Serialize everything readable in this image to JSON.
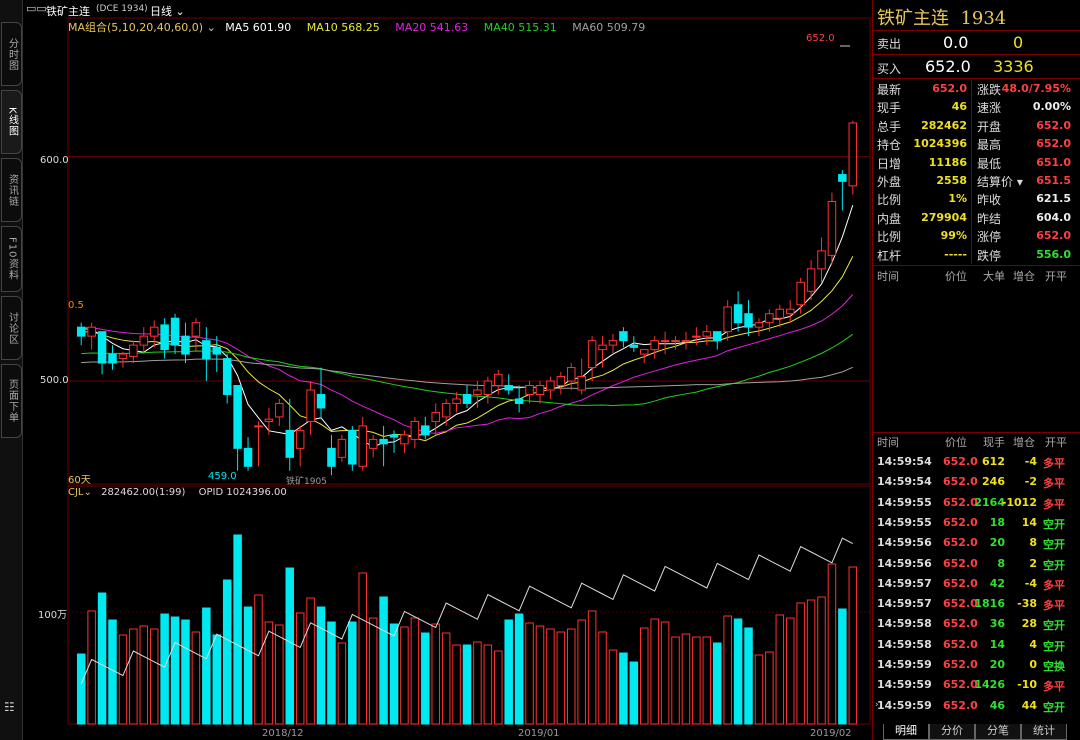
{
  "left_tabs": [
    "分时图",
    "K线图",
    "资讯链",
    "F10资料",
    "讨论区",
    "页面下单"
  ],
  "left_tab_active": "K线图",
  "chart_header": {
    "menu_icon": "window-icon",
    "symbol": "铁矿主连",
    "symbol_code": "(DCE 1934)",
    "period": "日线",
    "ma_group": "MA组合(5,10,20,40,60,0)",
    "ma5": "MA5 601.90",
    "ma10": "MA10 568.25",
    "ma20": "MA20 541.63",
    "ma40": "MA40 515.31",
    "ma60": "MA60 509.79"
  },
  "colors": {
    "ma5": "#ffffff",
    "ma10": "#e8e83a",
    "ma20": "#e020e0",
    "ma40": "#20d020",
    "ma60": "#a0a0a0",
    "up": "#ff3030",
    "down": "#00e8f0",
    "grid": "#6a0000"
  },
  "price_labels": {
    "p600": "600.0",
    "p500": "500.0",
    "high_marker": "652.0",
    "low_marker": "459.0",
    "scale_label": "0.5",
    "days_label": "60天",
    "contract_label": "铁矿1905"
  },
  "volume_header": {
    "indicator": "CJL",
    "value": "282462.00(1:99)",
    "opid": "OPID 1024396.00",
    "axis_label": "100万"
  },
  "x_axis_labels": [
    "2018/12",
    "2019/01",
    "2019/02"
  ],
  "chart_data": {
    "type": "candlestick",
    "y_range": [
      455,
      660
    ],
    "candles": [
      [
        524,
        526,
        516,
        520
      ],
      [
        520,
        526,
        514,
        524
      ],
      [
        522,
        522,
        503,
        508
      ],
      [
        512,
        516,
        505,
        508
      ],
      [
        510,
        513,
        506,
        512
      ],
      [
        511,
        518,
        508,
        516
      ],
      [
        516,
        524,
        512,
        520
      ],
      [
        520,
        527,
        515,
        524
      ],
      [
        525,
        528,
        510,
        514
      ],
      [
        528,
        530,
        512,
        516
      ],
      [
        520,
        526,
        508,
        512
      ],
      [
        520,
        528,
        513,
        526
      ],
      [
        518,
        524,
        500,
        510
      ],
      [
        515,
        520,
        504,
        512
      ],
      [
        510,
        512,
        490,
        494
      ],
      [
        498,
        498,
        460,
        470
      ],
      [
        470,
        475,
        460,
        462
      ],
      [
        480,
        482,
        462,
        480
      ],
      [
        482,
        488,
        476,
        483
      ],
      [
        484,
        492,
        480,
        490
      ],
      [
        478,
        492,
        460,
        466
      ],
      [
        470,
        480,
        462,
        478
      ],
      [
        482,
        500,
        476,
        496
      ],
      [
        494,
        506,
        484,
        488
      ],
      [
        470,
        476,
        458,
        462
      ],
      [
        466,
        476,
        464,
        474
      ],
      [
        478,
        480,
        460,
        463
      ],
      [
        462,
        484,
        460,
        480
      ],
      [
        470,
        476,
        466,
        474
      ],
      [
        474,
        480,
        462,
        472
      ],
      [
        476,
        478,
        468,
        475
      ],
      [
        472,
        478,
        468,
        476
      ],
      [
        474,
        484,
        470,
        482
      ],
      [
        480,
        484,
        474,
        476
      ],
      [
        482,
        490,
        476,
        486
      ],
      [
        484,
        492,
        480,
        490
      ],
      [
        490,
        495,
        486,
        492
      ],
      [
        494,
        498,
        488,
        490
      ],
      [
        494,
        500,
        488,
        496
      ],
      [
        494,
        502,
        490,
        500
      ],
      [
        498,
        505,
        494,
        503
      ],
      [
        498,
        503,
        494,
        496
      ],
      [
        492,
        498,
        486,
        490
      ],
      [
        494,
        500,
        490,
        498
      ],
      [
        494,
        500,
        490,
        498
      ],
      [
        496,
        502,
        492,
        500
      ],
      [
        498,
        504,
        494,
        502
      ],
      [
        500,
        508,
        496,
        506
      ],
      [
        496,
        510,
        494,
        502
      ],
      [
        506,
        520,
        500,
        518
      ],
      [
        514,
        520,
        506,
        516
      ],
      [
        516,
        521,
        512,
        518
      ],
      [
        522,
        524,
        515,
        518
      ],
      [
        516,
        520,
        513,
        515
      ],
      [
        512,
        514,
        508,
        514
      ],
      [
        514,
        520,
        510,
        518
      ],
      [
        518,
        522,
        512,
        518
      ],
      [
        518,
        520,
        514,
        518
      ],
      [
        518,
        522,
        514,
        518
      ],
      [
        520,
        524,
        516,
        520
      ],
      [
        520,
        525,
        516,
        522
      ],
      [
        522,
        522,
        514,
        518
      ],
      [
        522,
        536,
        518,
        533
      ],
      [
        534,
        540,
        522,
        526
      ],
      [
        530,
        536,
        520,
        524
      ],
      [
        524,
        528,
        520,
        526
      ],
      [
        526,
        532,
        522,
        530
      ],
      [
        528,
        534,
        524,
        532
      ],
      [
        530,
        536,
        526,
        532
      ],
      [
        534,
        546,
        530,
        544
      ],
      [
        540,
        554,
        536,
        550
      ],
      [
        550,
        564,
        544,
        558
      ],
      [
        556,
        584,
        552,
        580
      ],
      [
        592,
        594,
        576,
        589
      ],
      [
        587,
        616,
        583,
        615
      ]
    ],
    "volume_series_note": "",
    "last_price": 652.0
  },
  "right_panel": {
    "title": "铁矿主连",
    "code": "1934",
    "sell_label": "卖出",
    "sell_price": "0.0",
    "sell_vol": "0",
    "buy_label": "买入",
    "buy_price": "652.0",
    "buy_vol": "3336",
    "stats_left": [
      {
        "k": "最新",
        "v": "652.0",
        "c": "r"
      },
      {
        "k": "现手",
        "v": "46",
        "c": "y"
      },
      {
        "k": "总手",
        "v": "282462",
        "c": "y"
      },
      {
        "k": "持仓",
        "v": "1024396",
        "c": "y"
      },
      {
        "k": "日增",
        "v": "11186",
        "c": "y"
      },
      {
        "k": "外盘",
        "v": "2558",
        "c": "y"
      },
      {
        "k": "比例",
        "v": "1%",
        "c": "y"
      },
      {
        "k": "内盘",
        "v": "279904",
        "c": "y"
      },
      {
        "k": "比例",
        "v": "99%",
        "c": "y"
      },
      {
        "k": "杠杆",
        "v": "-----",
        "c": "y"
      }
    ],
    "stats_right": [
      {
        "k": "涨跌",
        "v": "48.0/7.95%",
        "c": "r"
      },
      {
        "k": "速涨",
        "v": "0.00%",
        "c": "w"
      },
      {
        "k": "开盘",
        "v": "652.0",
        "c": "r"
      },
      {
        "k": "最高",
        "v": "652.0",
        "c": "r"
      },
      {
        "k": "最低",
        "v": "651.0",
        "c": "r"
      },
      {
        "k": "结算价",
        "v": "651.5",
        "c": "r"
      },
      {
        "k": "昨收",
        "v": "621.5",
        "c": "w"
      },
      {
        "k": "昨结",
        "v": "604.0",
        "c": "w"
      },
      {
        "k": "涨停",
        "v": "652.0",
        "c": "r"
      },
      {
        "k": "跌停",
        "v": "556.0",
        "c": "g"
      }
    ],
    "order_header": [
      "时间",
      "价位",
      "大单",
      "增仓",
      "开平"
    ],
    "trade_header": [
      "时间",
      "价位",
      "现手",
      "增仓",
      "开平"
    ],
    "trades": [
      [
        "14:59:54",
        "652.0",
        "612",
        "-4",
        "多平",
        "y",
        "r"
      ],
      [
        "14:59:54",
        "652.0",
        "246",
        "-2",
        "多平",
        "y",
        "r"
      ],
      [
        "14:59:55",
        "652.0",
        "2164",
        "-1012",
        "多平",
        "g",
        "r"
      ],
      [
        "14:59:55",
        "652.0",
        "18",
        "14",
        "空开",
        "g",
        "g"
      ],
      [
        "14:59:56",
        "652.0",
        "20",
        "8",
        "空开",
        "g",
        "g"
      ],
      [
        "14:59:56",
        "652.0",
        "8",
        "2",
        "空开",
        "g",
        "g"
      ],
      [
        "14:59:57",
        "652.0",
        "42",
        "-4",
        "多平",
        "g",
        "r"
      ],
      [
        "14:59:57",
        "652.0",
        "1816",
        "-38",
        "多平",
        "g",
        "r"
      ],
      [
        "14:59:58",
        "652.0",
        "36",
        "28",
        "空开",
        "g",
        "g"
      ],
      [
        "14:59:58",
        "652.0",
        "14",
        "4",
        "空开",
        "g",
        "g"
      ],
      [
        "14:59:59",
        "652.0",
        "20",
        "0",
        "空换",
        "g",
        "g"
      ],
      [
        "14:59:59",
        "652.0",
        "1426",
        "-10",
        "多平",
        "g",
        "r"
      ],
      [
        "14:59:59",
        "652.0",
        "46",
        "44",
        "空开",
        "g",
        "g"
      ]
    ],
    "bottom_tabs": [
      "明细",
      "分价",
      "分笔",
      "统计"
    ]
  }
}
